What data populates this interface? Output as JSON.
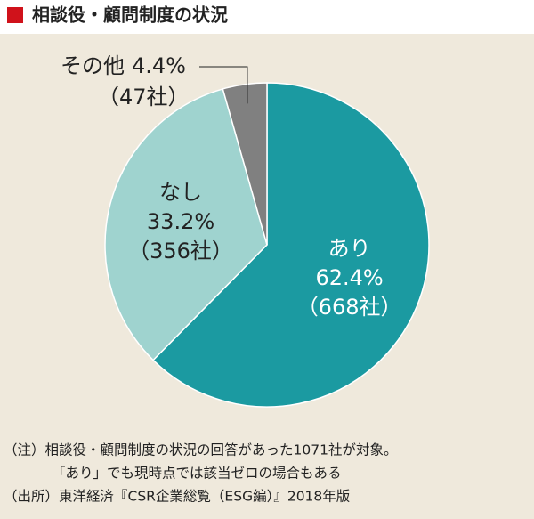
{
  "chart_data": {
    "type": "pie",
    "title": "相談役・顧問制度の状況",
    "categories": [
      "あり",
      "なし",
      "その他"
    ],
    "values": [
      62.4,
      33.2,
      4.4
    ],
    "value_labels": [
      "62.4%",
      "33.2%",
      "4.4%"
    ],
    "count_labels": [
      "（668社）",
      "（356社）",
      "（47社）"
    ],
    "colors": [
      "#1b9aa1",
      "#9fd3cf",
      "#808080"
    ],
    "notes": [
      "（注）相談役・顧問制度の状況の回答があった1071社が対象。",
      "「あり」でも現時点では該当ゼロの場合もある",
      "（出所）東洋経済『CSR企業総覧（ESG編）』2018年版"
    ]
  }
}
